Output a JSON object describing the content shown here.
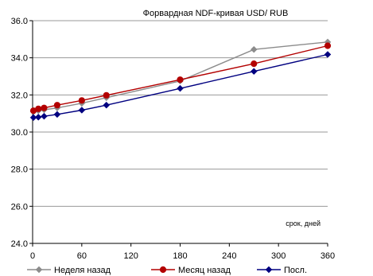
{
  "chart_data": {
    "type": "line",
    "title": "Форвардная NDF-кривая USD/ RUB",
    "annotation": "срок, дней",
    "xlabel": "",
    "ylabel": "",
    "xlim": [
      0,
      360
    ],
    "ylim": [
      24,
      36
    ],
    "xticks": [
      0,
      60,
      120,
      180,
      240,
      300,
      360
    ],
    "xtick_labels": [
      "0",
      "60",
      "120",
      "180",
      "240",
      "300",
      "360"
    ],
    "yticks": [
      24,
      26,
      28,
      30,
      32,
      34,
      36
    ],
    "ytick_labels": [
      "24.0",
      "26.0",
      "28.0",
      "30.0",
      "32.0",
      "34.0",
      "36.0"
    ],
    "grid": {
      "y": true,
      "x": false
    },
    "legend_position": "bottom",
    "series": [
      {
        "name": "Неделя назад",
        "color": "#8c8c8c",
        "marker": "diamond",
        "points": [
          {
            "x": 1,
            "y": 31.1
          },
          {
            "x": 7,
            "y": 31.15
          },
          {
            "x": 14,
            "y": 31.2
          },
          {
            "x": 30,
            "y": 31.3
          },
          {
            "x": 60,
            "y": 31.55
          },
          {
            "x": 90,
            "y": 31.85
          },
          {
            "x": 180,
            "y": 32.75
          },
          {
            "x": 270,
            "y": 34.45
          },
          {
            "x": 360,
            "y": 34.85
          }
        ]
      },
      {
        "name": "Месяц назад",
        "color": "#b30000",
        "marker": "circle",
        "points": [
          {
            "x": 1,
            "y": 31.15
          },
          {
            "x": 7,
            "y": 31.25
          },
          {
            "x": 14,
            "y": 31.3
          },
          {
            "x": 30,
            "y": 31.45
          },
          {
            "x": 60,
            "y": 31.7
          },
          {
            "x": 90,
            "y": 31.98
          },
          {
            "x": 180,
            "y": 32.82
          },
          {
            "x": 270,
            "y": 33.68
          },
          {
            "x": 360,
            "y": 34.65
          }
        ]
      },
      {
        "name": "Посл.",
        "color": "#000080",
        "marker": "diamond",
        "points": [
          {
            "x": 1,
            "y": 30.78
          },
          {
            "x": 7,
            "y": 30.8
          },
          {
            "x": 14,
            "y": 30.85
          },
          {
            "x": 30,
            "y": 30.95
          },
          {
            "x": 60,
            "y": 31.18
          },
          {
            "x": 90,
            "y": 31.45
          },
          {
            "x": 180,
            "y": 32.35
          },
          {
            "x": 270,
            "y": 33.27
          },
          {
            "x": 360,
            "y": 34.18
          }
        ]
      }
    ]
  }
}
